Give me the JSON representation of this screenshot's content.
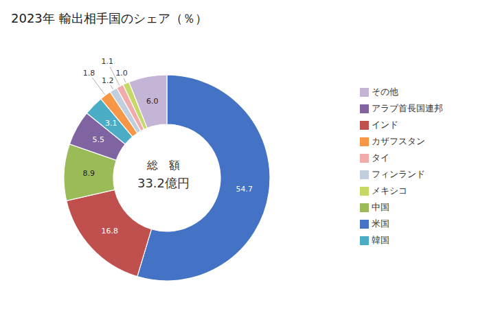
{
  "chart_data": {
    "type": "pie",
    "title": "2023年 輸出相手国のシェア（％）",
    "annotations": [
      "総　額",
      "33.2億円"
    ],
    "categories": [
      "米国",
      "インド",
      "中国",
      "アラブ首長国連邦",
      "韓国",
      "カザフスタン",
      "フィンランド",
      "タイ",
      "メキシコ",
      "その他"
    ],
    "values": [
      54.7,
      16.8,
      8.9,
      5.5,
      3.1,
      1.8,
      1.2,
      1.1,
      1.0,
      6.0
    ],
    "value_labels": [
      "54.7",
      "16.8",
      "8.9",
      "5.5",
      "3.1",
      "1.8",
      "1.2",
      "1.1",
      "1.0",
      "6.0"
    ],
    "colors": [
      "#4472C4",
      "#C0504D",
      "#9BBB59",
      "#8064A2",
      "#4BACC6",
      "#F79646",
      "#C0CEDE",
      "#F2ABAB",
      "#C6D966",
      "#C4B4D6"
    ],
    "data_labels": true,
    "legend": "right"
  }
}
